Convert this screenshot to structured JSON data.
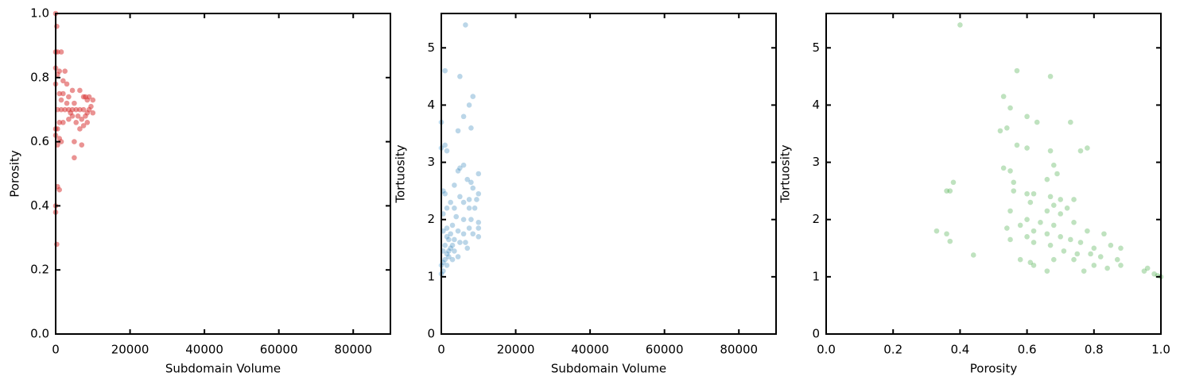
{
  "chart_data": [
    {
      "type": "scatter",
      "xlabel": "Subdomain Volume",
      "ylabel": "Porosity",
      "color": "#d62728",
      "opacity": 0.5,
      "xlim": [
        0,
        90000
      ],
      "ylim": [
        0,
        1
      ],
      "xticks": [
        0,
        20000,
        40000,
        60000,
        80000
      ],
      "yticks": [
        {
          "value": 0,
          "label": "0.0"
        },
        0.2,
        0.4,
        0.6,
        0.8,
        {
          "value": 1,
          "label": "1.0"
        }
      ],
      "x": [
        0,
        300,
        0,
        500,
        1500,
        0,
        500,
        1000,
        2500,
        2000,
        3000,
        0,
        1000,
        2000,
        3500,
        4500,
        6500,
        7500,
        9000,
        10000,
        8500,
        5000,
        3000,
        1500,
        500,
        1500,
        3500,
        4500,
        5500,
        6500,
        7500,
        8500,
        9500,
        10000,
        8000,
        7000,
        6000,
        4500,
        3500,
        2000,
        1000,
        500,
        5500,
        7500,
        8500,
        9000,
        0,
        1000,
        1500,
        500,
        5000,
        7000,
        5000,
        6500,
        0,
        500,
        1000,
        0,
        0,
        300,
        2500,
        4000,
        8000
      ],
      "y": [
        1.0,
        0.96,
        0.88,
        0.88,
        0.88,
        0.83,
        0.81,
        0.82,
        0.82,
        0.79,
        0.78,
        0.78,
        0.75,
        0.75,
        0.74,
        0.76,
        0.76,
        0.74,
        0.74,
        0.73,
        0.73,
        0.72,
        0.72,
        0.73,
        0.7,
        0.7,
        0.7,
        0.7,
        0.7,
        0.7,
        0.7,
        0.69,
        0.71,
        0.69,
        0.68,
        0.67,
        0.68,
        0.68,
        0.67,
        0.66,
        0.66,
        0.64,
        0.66,
        0.65,
        0.66,
        0.7,
        0.62,
        0.61,
        0.6,
        0.59,
        0.6,
        0.59,
        0.55,
        0.64,
        0.64,
        0.46,
        0.45,
        0.4,
        0.38,
        0.28,
        0.7,
        0.69,
        0.74
      ]
    },
    {
      "type": "scatter",
      "xlabel": "Subdomain Volume",
      "ylabel": "Tortuosity",
      "color": "#1f77b4",
      "opacity": 0.3,
      "xlim": [
        0,
        90000
      ],
      "ylim": [
        0,
        5.6
      ],
      "xticks": [
        0,
        20000,
        40000,
        60000,
        80000
      ],
      "yticks": [
        0,
        1,
        2,
        3,
        4,
        5
      ],
      "x": [
        6500,
        1000,
        5000,
        8500,
        7500,
        6000,
        8000,
        0,
        4500,
        1000,
        1500,
        0,
        5000,
        6000,
        4500,
        10000,
        7000,
        8000,
        8500,
        500,
        1000,
        3500,
        5000,
        7500,
        10000,
        9500,
        6000,
        2500,
        1500,
        3500,
        7500,
        9000,
        500,
        4000,
        6000,
        8000,
        10000,
        10000,
        7500,
        3000,
        1500,
        500,
        2500,
        4500,
        6000,
        8500,
        1500,
        2000,
        3500,
        5000,
        6500,
        1000,
        2500,
        3500,
        500,
        1500,
        2000,
        3000,
        1000,
        500,
        0,
        1500,
        500,
        0,
        3000,
        7000,
        10000,
        4500,
        2000
      ],
      "y": [
        5.4,
        4.6,
        4.5,
        4.15,
        4.0,
        3.8,
        3.6,
        3.7,
        3.55,
        3.3,
        3.2,
        3.25,
        2.9,
        2.95,
        2.85,
        2.8,
        2.7,
        2.65,
        2.55,
        2.5,
        2.45,
        2.6,
        2.4,
        2.35,
        2.45,
        2.35,
        2.3,
        2.3,
        2.2,
        2.2,
        2.2,
        2.2,
        2.1,
        2.05,
        2.0,
        2.0,
        1.95,
        1.85,
        1.85,
        1.9,
        1.85,
        1.8,
        1.75,
        1.8,
        1.75,
        1.75,
        1.7,
        1.65,
        1.65,
        1.6,
        1.6,
        1.55,
        1.5,
        1.45,
        1.45,
        1.4,
        1.35,
        1.3,
        1.3,
        1.25,
        1.2,
        1.2,
        1.1,
        1.05,
        1.55,
        1.5,
        1.7,
        1.35,
        1.45
      ]
    },
    {
      "type": "scatter",
      "xlabel": "Porosity",
      "ylabel": "Tortuosity",
      "color": "#2ca02c",
      "opacity": 0.3,
      "xlim": [
        0,
        1
      ],
      "ylim": [
        0,
        5.6
      ],
      "xticks": [
        {
          "value": 0,
          "label": "0.0"
        },
        0.2,
        0.4,
        0.6,
        0.8,
        {
          "value": 1,
          "label": "1.0"
        }
      ],
      "yticks": [
        0,
        1,
        2,
        3,
        4,
        5
      ],
      "x": [
        0.4,
        0.57,
        0.67,
        0.53,
        0.55,
        0.6,
        0.63,
        0.73,
        0.54,
        0.52,
        0.6,
        0.57,
        0.78,
        0.76,
        0.67,
        0.53,
        0.55,
        0.68,
        0.69,
        0.66,
        0.38,
        0.56,
        0.36,
        0.37,
        0.56,
        0.6,
        0.62,
        0.67,
        0.7,
        0.74,
        0.61,
        0.68,
        0.72,
        0.66,
        0.7,
        0.55,
        0.6,
        0.64,
        0.68,
        0.74,
        0.78,
        0.83,
        0.58,
        0.54,
        0.33,
        0.36,
        0.37,
        0.62,
        0.66,
        0.7,
        0.73,
        0.76,
        0.8,
        0.85,
        0.88,
        0.55,
        0.6,
        0.62,
        0.67,
        0.71,
        0.75,
        0.79,
        0.82,
        0.87,
        0.88,
        0.84,
        0.44,
        0.58,
        0.61,
        0.62,
        0.66,
        0.77,
        0.95,
        0.96,
        0.98,
        1.0,
        0.99,
        0.68,
        0.74,
        0.8
      ],
      "y": [
        5.4,
        4.6,
        4.5,
        4.15,
        3.95,
        3.8,
        3.7,
        3.7,
        3.6,
        3.55,
        3.25,
        3.3,
        3.25,
        3.2,
        3.2,
        2.9,
        2.85,
        2.95,
        2.8,
        2.7,
        2.65,
        2.65,
        2.5,
        2.5,
        2.5,
        2.45,
        2.45,
        2.4,
        2.35,
        2.35,
        2.3,
        2.25,
        2.2,
        2.15,
        2.1,
        2.15,
        2.0,
        1.95,
        1.9,
        1.95,
        1.8,
        1.75,
        1.9,
        1.85,
        1.8,
        1.75,
        1.62,
        1.8,
        1.75,
        1.7,
        1.65,
        1.6,
        1.5,
        1.55,
        1.5,
        1.65,
        1.7,
        1.6,
        1.55,
        1.45,
        1.4,
        1.4,
        1.35,
        1.3,
        1.2,
        1.15,
        1.38,
        1.3,
        1.25,
        1.2,
        1.1,
        1.1,
        1.1,
        1.15,
        1.05,
        1.0,
        1.02,
        1.3,
        1.3,
        1.2
      ]
    }
  ]
}
